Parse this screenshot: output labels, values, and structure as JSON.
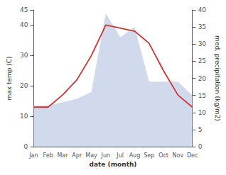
{
  "chart_data": {
    "type": "line",
    "categories": [
      "Jan",
      "Feb",
      "Mar",
      "Apr",
      "May",
      "Jun",
      "Jul",
      "Aug",
      "Sep",
      "Oct",
      "Nov",
      "Dec"
    ],
    "series": [
      {
        "type": "area",
        "color": "#aabbdd",
        "axis": "y2",
        "values": [
          12,
          12,
          13,
          14,
          16,
          39,
          32,
          35,
          19,
          19,
          19,
          15
        ]
      },
      {
        "type": "line",
        "color": "#cc3333",
        "values": [
          13,
          13,
          17,
          22,
          30,
          40,
          39,
          38,
          34,
          25,
          17,
          13
        ]
      }
    ],
    "xlabel": "date (month)",
    "ylabel": "max temp (C)",
    "y2label": "med. precipitation (kg/m2)",
    "ylim": [
      0,
      45
    ],
    "yticks": [
      0,
      10,
      20,
      30,
      40
    ],
    "y2lim": [
      0,
      40
    ],
    "y2ticks": [
      0,
      5,
      10,
      15,
      20,
      25,
      30,
      35,
      40
    ],
    "grid": false
  }
}
